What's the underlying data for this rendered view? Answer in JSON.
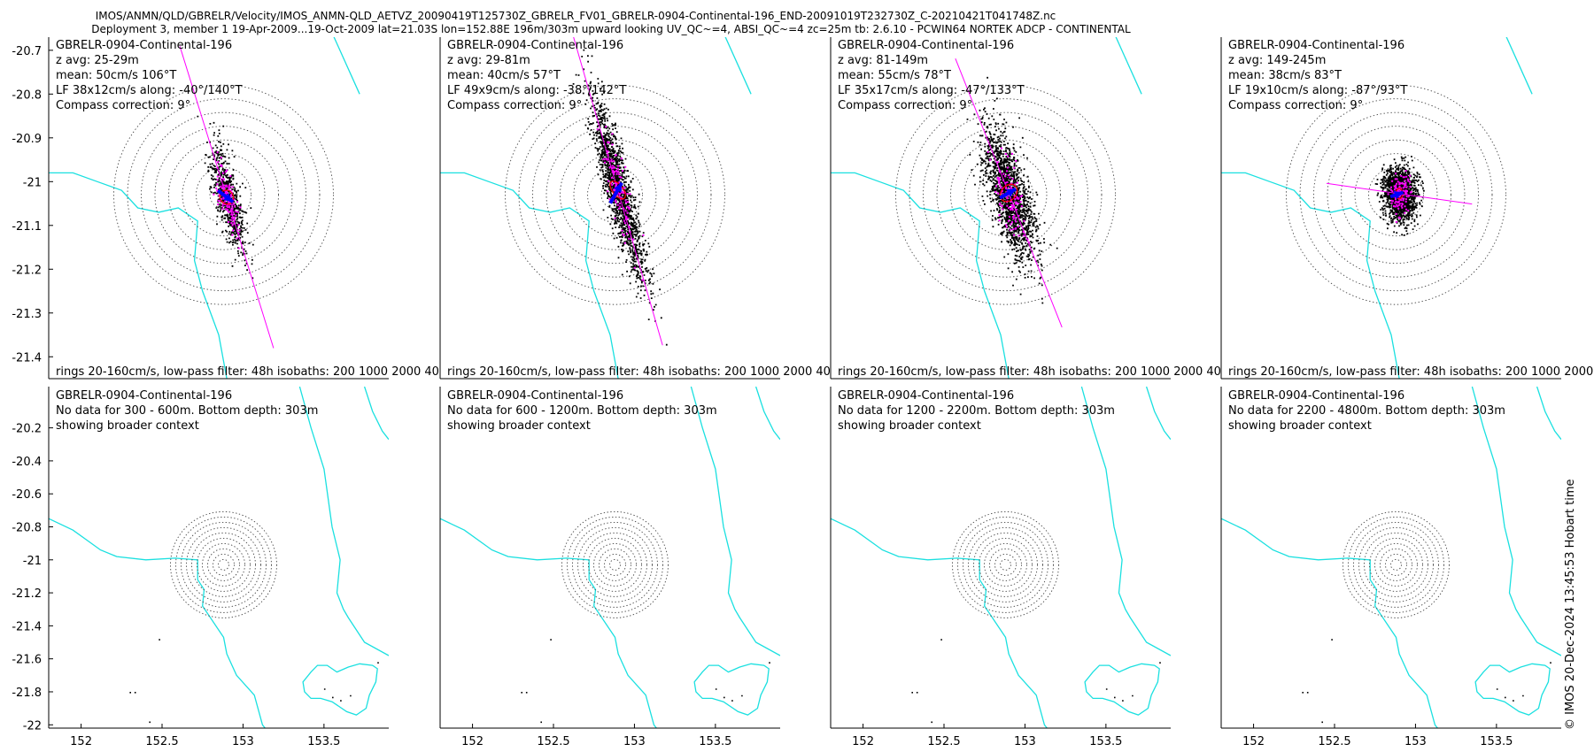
{
  "header": {
    "line1": "IMOS/ANMN/QLD/GBRELR/Velocity/IMOS_ANMN-QLD_AETVZ_20090419T125730Z_GBRELR_FV01_GBRELR-0904-Continental-196_END-20091019T232730Z_C-20210421T041748Z.nc",
    "line2": "Deployment 3, member 1 19-Apr-2009...19-Oct-2009 lat=21.03S lon=152.88E 196m/303m upward looking UV_QC~=4, ABSI_QC~=4 zc=25m tb: 2.6.10 - PCWIN64 NORTEK ADCP - CONTINENTAL"
  },
  "credit": "© IMOS 20-Dec-2024 13:45:53 Hobart time",
  "colors": {
    "coast": "#1ae0e0",
    "scatter": "#000000",
    "lowpass": "#ff00ff",
    "mean": "#0000ff",
    "ellipse": "#ff0000",
    "rings": "#444444"
  },
  "chart_data": [
    {
      "type": "scatter",
      "row": "top",
      "ylim": [
        -21.45,
        -20.67
      ],
      "yticks": [
        -20.7,
        -20.8,
        -20.9,
        -21,
        -21.1,
        -21.2,
        -21.3,
        -21.4
      ],
      "footer": "rings 20-160cm/s, low-pass filter: 48h isobaths: 200 1000 2000 40",
      "panels": [
        {
          "id": "p1",
          "title": "GBRELR-0904-Continental-196",
          "zavg": "z avg: 25-29m",
          "mean": "mean: 50cm/s 106°T",
          "lf": "LF 38x12cm/s along: -40°/140°T",
          "compass": "Compass correction: 9°",
          "spread": [
            0.075,
            0.03
          ],
          "ellipse_semi": [
            0.045,
            0.015
          ],
          "major_axis_deg": 140,
          "arrow_dir_deg": 106,
          "arrow_len": 0.06
        },
        {
          "id": "p2",
          "title": "GBRELR-0904-Continental-196",
          "zavg": "z avg: 29-81m",
          "mean": "mean: 40cm/s 57°T",
          "lf": "LF 49x9cm/s along: -38°/142°T",
          "compass": "Compass correction: 9°",
          "spread": [
            0.13,
            0.03
          ],
          "ellipse_semi": [
            0.065,
            0.012
          ],
          "major_axis_deg": 142,
          "arrow_dir_deg": 57,
          "arrow_len": 0.05
        },
        {
          "id": "p3",
          "title": "GBRELR-0904-Continental-196",
          "zavg": "z avg: 81-149m",
          "mean": "mean: 55cm/s 78°T",
          "lf": "LF 35x17cm/s along: -47°/133°T",
          "compass": "Compass correction: 9°",
          "spread": [
            0.1,
            0.045
          ],
          "ellipse_semi": [
            0.045,
            0.022
          ],
          "major_axis_deg": 133,
          "arrow_dir_deg": 78,
          "arrow_len": 0.065
        },
        {
          "id": "p4",
          "title": "GBRELR-0904-Continental-196",
          "zavg": "z avg: 149-245m",
          "mean": "mean: 38cm/s 83°T",
          "lf": "LF 19x10cm/s along: -87°/93°T",
          "compass": "Compass correction: 9°",
          "spread": [
            0.05,
            0.03
          ],
          "ellipse_semi": [
            0.022,
            0.012
          ],
          "major_axis_deg": 93,
          "arrow_dir_deg": 83,
          "arrow_len": 0.045
        }
      ]
    },
    {
      "type": "scatter",
      "row": "bottom",
      "xlim": [
        151.8,
        153.9
      ],
      "ylim": [
        -22.02,
        -19.95
      ],
      "xticks": [
        152,
        152.5,
        153,
        153.5
      ],
      "yticks": [
        -20.2,
        -20.4,
        -20.6,
        -20.8,
        -21,
        -21.2,
        -21.4,
        -21.6,
        -21.8,
        -22
      ],
      "panels": [
        {
          "id": "p5",
          "title": "GBRELR-0904-Continental-196",
          "nodata": "No data for 300 - 600m. Bottom depth: 303m",
          "context": "showing broader context"
        },
        {
          "id": "p6",
          "title": "GBRELR-0904-Continental-196",
          "nodata": "No data for 600 - 1200m. Bottom depth: 303m",
          "context": "showing broader context"
        },
        {
          "id": "p7",
          "title": "GBRELR-0904-Continental-196",
          "nodata": "No data for 1200 - 2200m. Bottom depth: 303m",
          "context": "showing broader context"
        },
        {
          "id": "p8",
          "title": "GBRELR-0904-Continental-196",
          "nodata": "No data for 2200 - 4800m. Bottom depth: 303m",
          "context": "showing broader context"
        }
      ],
      "reef_points": [
        [
          152.48,
          -21.48
        ],
        [
          152.3,
          -21.8
        ],
        [
          152.33,
          -21.8
        ],
        [
          152.42,
          -21.98
        ],
        [
          153.5,
          -21.78
        ],
        [
          153.55,
          -21.83
        ],
        [
          153.6,
          -21.85
        ],
        [
          153.66,
          -21.82
        ],
        [
          153.83,
          -21.62
        ]
      ]
    }
  ],
  "station": {
    "lon": 152.88,
    "lat": -21.03
  }
}
